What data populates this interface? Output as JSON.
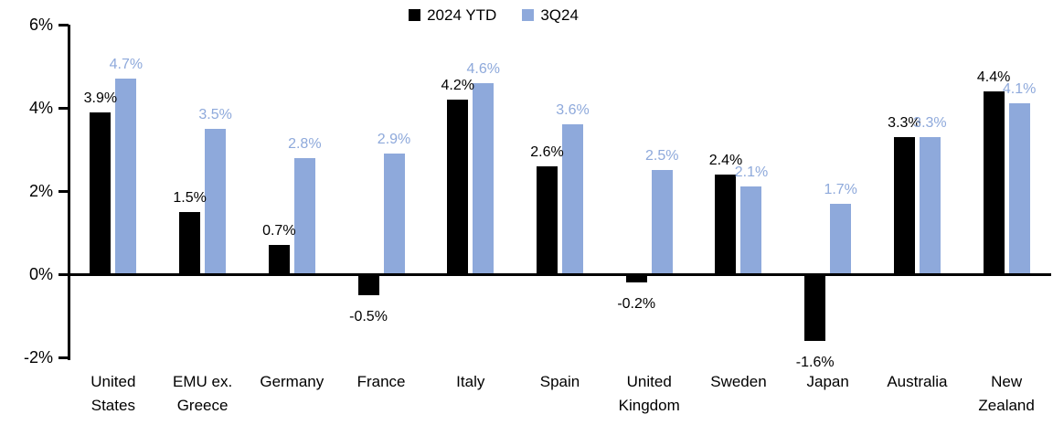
{
  "chart": {
    "legend": [
      {
        "label": "2024 YTD",
        "color": "#000000"
      },
      {
        "label": "3Q24",
        "color": "#8EA9DB"
      }
    ]
  },
  "chart_data": {
    "type": "bar",
    "title": "",
    "xlabel": "",
    "ylabel": "",
    "grid": false,
    "legend_position": "top-center",
    "value_labels": "outside-end",
    "ylim": [
      -2,
      6
    ],
    "y_ticks": [
      {
        "value": 6,
        "label": "6%"
      },
      {
        "value": 4,
        "label": "4%"
      },
      {
        "value": 2,
        "label": "2%"
      },
      {
        "value": 0,
        "label": "0%"
      },
      {
        "value": -2,
        "label": "-2%"
      }
    ],
    "categories": [
      "United States",
      "EMU ex. Greece",
      "Germany",
      "France",
      "Italy",
      "Spain",
      "United Kingdom",
      "Sweden",
      "Japan",
      "Australia",
      "New Zealand"
    ],
    "series": [
      {
        "name": "2024 YTD",
        "color": "#000000",
        "values": [
          3.9,
          1.5,
          0.7,
          -0.5,
          4.2,
          2.6,
          -0.2,
          2.4,
          -1.6,
          3.3,
          4.4
        ],
        "labels": [
          "3.9%",
          "1.5%",
          "0.7%",
          "-0.5%",
          "4.2%",
          "2.6%",
          "-0.2%",
          "2.4%",
          "-1.6%",
          "3.3%",
          "4.4%"
        ]
      },
      {
        "name": "3Q24",
        "color": "#8EA9DB",
        "values": [
          4.7,
          3.5,
          2.8,
          2.9,
          4.6,
          3.6,
          2.5,
          2.1,
          1.7,
          3.3,
          4.1
        ],
        "labels": [
          "4.7%",
          "3.5%",
          "2.8%",
          "2.9%",
          "4.6%",
          "3.6%",
          "2.5%",
          "2.1%",
          "1.7%",
          "3.3%",
          "4.1%"
        ]
      }
    ]
  }
}
